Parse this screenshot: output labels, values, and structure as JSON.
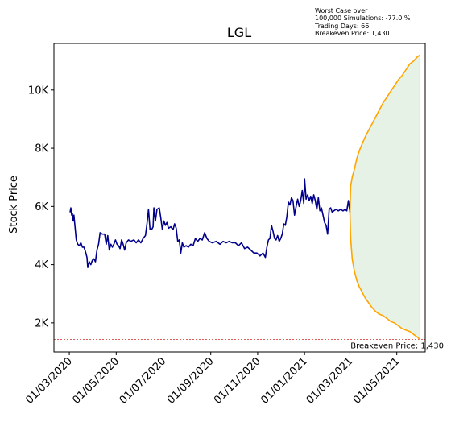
{
  "chart_data": {
    "type": "line",
    "title": "LGL",
    "xlabel": "",
    "ylabel": "Stock Price",
    "x_tick_labels": [
      "01/03/2020",
      "01/05/2020",
      "01/07/2020",
      "01/09/2020",
      "01/11/2020",
      "01/01/2021",
      "01/03/2021",
      "01/05/2021"
    ],
    "y_tick_labels": [
      "2K",
      "4K",
      "6K",
      "8K",
      "10K"
    ],
    "y_ticks": [
      2000,
      4000,
      6000,
      8000,
      10000
    ],
    "ylim": [
      1000,
      11600
    ],
    "xlim": [
      "2020-02-10",
      "2021-06-07"
    ],
    "grid": false,
    "info_lines": [
      "Worst Case over",
      "100,000 Simulations: -77.0 %",
      "Trading Days: 66",
      "Breakeven Price: 1,430"
    ],
    "breakeven": {
      "value": 1430,
      "label": "Breakeven Price: 1,430",
      "color": "#d62728"
    },
    "colors": {
      "history": "#00008b",
      "envelope": "#ffa500",
      "fill": "#e5f2e5"
    },
    "history": [
      [
        "2020-03-02",
        5800
      ],
      [
        "2020-03-03",
        5950
      ],
      [
        "2020-03-04",
        5700
      ],
      [
        "2020-03-05",
        5750
      ],
      [
        "2020-03-06",
        5500
      ],
      [
        "2020-03-07",
        5700
      ],
      [
        "2020-03-09",
        5150
      ],
      [
        "2020-03-10",
        4850
      ],
      [
        "2020-03-12",
        4700
      ],
      [
        "2020-03-14",
        4650
      ],
      [
        "2020-03-16",
        4750
      ],
      [
        "2020-03-18",
        4600
      ],
      [
        "2020-03-20",
        4600
      ],
      [
        "2020-03-22",
        4450
      ],
      [
        "2020-03-24",
        4250
      ],
      [
        "2020-03-25",
        3900
      ],
      [
        "2020-03-27",
        4100
      ],
      [
        "2020-03-29",
        4000
      ],
      [
        "2020-03-31",
        4150
      ],
      [
        "2020-04-02",
        4200
      ],
      [
        "2020-04-04",
        4100
      ],
      [
        "2020-04-06",
        4500
      ],
      [
        "2020-04-08",
        4700
      ],
      [
        "2020-04-10",
        5100
      ],
      [
        "2020-04-13",
        5050
      ],
      [
        "2020-04-16",
        5050
      ],
      [
        "2020-04-18",
        4700
      ],
      [
        "2020-04-20",
        5000
      ],
      [
        "2020-04-22",
        4500
      ],
      [
        "2020-04-24",
        4700
      ],
      [
        "2020-04-26",
        4600
      ],
      [
        "2020-04-28",
        4700
      ],
      [
        "2020-04-30",
        4850
      ],
      [
        "2020-05-02",
        4700
      ],
      [
        "2020-05-04",
        4650
      ],
      [
        "2020-05-06",
        4550
      ],
      [
        "2020-05-08",
        4850
      ],
      [
        "2020-05-10",
        4700
      ],
      [
        "2020-05-12",
        4500
      ],
      [
        "2020-05-14",
        4750
      ],
      [
        "2020-05-17",
        4850
      ],
      [
        "2020-05-20",
        4800
      ],
      [
        "2020-05-24",
        4850
      ],
      [
        "2020-05-27",
        4750
      ],
      [
        "2020-05-30",
        4850
      ],
      [
        "2020-06-02",
        4750
      ],
      [
        "2020-06-05",
        4900
      ],
      [
        "2020-06-08",
        5000
      ],
      [
        "2020-06-10",
        5400
      ],
      [
        "2020-06-12",
        5900
      ],
      [
        "2020-06-14",
        5200
      ],
      [
        "2020-06-16",
        5200
      ],
      [
        "2020-06-18",
        5300
      ],
      [
        "2020-06-19",
        5950
      ],
      [
        "2020-06-21",
        5500
      ],
      [
        "2020-06-23",
        5900
      ],
      [
        "2020-06-26",
        5950
      ],
      [
        "2020-06-28",
        5600
      ],
      [
        "2020-06-30",
        5200
      ],
      [
        "2020-07-02",
        5500
      ],
      [
        "2020-07-04",
        5350
      ],
      [
        "2020-07-06",
        5450
      ],
      [
        "2020-07-08",
        5250
      ],
      [
        "2020-07-11",
        5300
      ],
      [
        "2020-07-14",
        5200
      ],
      [
        "2020-07-16",
        5400
      ],
      [
        "2020-07-18",
        5250
      ],
      [
        "2020-07-20",
        4800
      ],
      [
        "2020-07-22",
        4850
      ],
      [
        "2020-07-24",
        4400
      ],
      [
        "2020-07-26",
        4750
      ],
      [
        "2020-07-28",
        4600
      ],
      [
        "2020-07-31",
        4650
      ],
      [
        "2020-08-03",
        4600
      ],
      [
        "2020-08-06",
        4700
      ],
      [
        "2020-08-09",
        4650
      ],
      [
        "2020-08-12",
        4900
      ],
      [
        "2020-08-15",
        4800
      ],
      [
        "2020-08-18",
        4900
      ],
      [
        "2020-08-21",
        4850
      ],
      [
        "2020-08-24",
        5100
      ],
      [
        "2020-08-27",
        4900
      ],
      [
        "2020-08-30",
        4800
      ],
      [
        "2020-09-03",
        4750
      ],
      [
        "2020-09-08",
        4800
      ],
      [
        "2020-09-13",
        4700
      ],
      [
        "2020-09-17",
        4800
      ],
      [
        "2020-09-21",
        4750
      ],
      [
        "2020-09-25",
        4800
      ],
      [
        "2020-09-29",
        4750
      ],
      [
        "2020-10-03",
        4750
      ],
      [
        "2020-10-07",
        4650
      ],
      [
        "2020-10-11",
        4750
      ],
      [
        "2020-10-15",
        4550
      ],
      [
        "2020-10-19",
        4600
      ],
      [
        "2020-10-23",
        4500
      ],
      [
        "2020-10-27",
        4400
      ],
      [
        "2020-10-31",
        4400
      ],
      [
        "2020-11-04",
        4300
      ],
      [
        "2020-11-08",
        4400
      ],
      [
        "2020-11-11",
        4250
      ],
      [
        "2020-11-13",
        4600
      ],
      [
        "2020-11-15",
        4850
      ],
      [
        "2020-11-17",
        4900
      ],
      [
        "2020-11-19",
        5350
      ],
      [
        "2020-11-21",
        5150
      ],
      [
        "2020-11-23",
        4900
      ],
      [
        "2020-11-25",
        4850
      ],
      [
        "2020-11-27",
        5000
      ],
      [
        "2020-11-29",
        4800
      ],
      [
        "2020-12-01",
        4900
      ],
      [
        "2020-12-03",
        5050
      ],
      [
        "2020-12-05",
        5400
      ],
      [
        "2020-12-07",
        5350
      ],
      [
        "2020-12-09",
        5650
      ],
      [
        "2020-12-11",
        6150
      ],
      [
        "2020-12-13",
        6050
      ],
      [
        "2020-12-15",
        6300
      ],
      [
        "2020-12-17",
        6200
      ],
      [
        "2020-12-19",
        5700
      ],
      [
        "2020-12-21",
        6000
      ],
      [
        "2020-12-23",
        6250
      ],
      [
        "2020-12-25",
        6000
      ],
      [
        "2020-12-27",
        6200
      ],
      [
        "2020-12-29",
        6550
      ],
      [
        "2020-12-31",
        6100
      ],
      [
        "2021-01-01",
        6950
      ],
      [
        "2021-01-03",
        6250
      ],
      [
        "2021-01-05",
        6400
      ],
      [
        "2021-01-07",
        6200
      ],
      [
        "2021-01-09",
        6350
      ],
      [
        "2021-01-11",
        6100
      ],
      [
        "2021-01-13",
        6400
      ],
      [
        "2021-01-15",
        6200
      ],
      [
        "2021-01-17",
        5900
      ],
      [
        "2021-01-19",
        6300
      ],
      [
        "2021-01-21",
        5850
      ],
      [
        "2021-01-23",
        5950
      ],
      [
        "2021-01-25",
        5700
      ],
      [
        "2021-01-27",
        5450
      ],
      [
        "2021-01-29",
        5350
      ],
      [
        "2021-01-31",
        5050
      ],
      [
        "2021-02-02",
        5900
      ],
      [
        "2021-02-04",
        5950
      ],
      [
        "2021-02-06",
        5800
      ],
      [
        "2021-02-08",
        5850
      ],
      [
        "2021-02-11",
        5900
      ],
      [
        "2021-02-14",
        5850
      ],
      [
        "2021-02-17",
        5900
      ],
      [
        "2021-02-20",
        5850
      ],
      [
        "2021-02-23",
        5900
      ],
      [
        "2021-02-25",
        5850
      ],
      [
        "2021-02-27",
        6200
      ],
      [
        "2021-03-01",
        5800
      ]
    ],
    "envelope_upper": [
      [
        "2021-03-01",
        5800
      ],
      [
        "2021-03-02",
        6700
      ],
      [
        "2021-03-04",
        7000
      ],
      [
        "2021-03-07",
        7300
      ],
      [
        "2021-03-10",
        7650
      ],
      [
        "2021-03-13",
        7900
      ],
      [
        "2021-03-17",
        8150
      ],
      [
        "2021-03-21",
        8400
      ],
      [
        "2021-03-25",
        8600
      ],
      [
        "2021-03-29",
        8800
      ],
      [
        "2021-04-03",
        9050
      ],
      [
        "2021-04-08",
        9300
      ],
      [
        "2021-04-13",
        9550
      ],
      [
        "2021-04-18",
        9750
      ],
      [
        "2021-04-23",
        9950
      ],
      [
        "2021-04-28",
        10150
      ],
      [
        "2021-05-03",
        10350
      ],
      [
        "2021-05-08",
        10500
      ],
      [
        "2021-05-13",
        10700
      ],
      [
        "2021-05-18",
        10900
      ],
      [
        "2021-05-23",
        11000
      ],
      [
        "2021-05-28",
        11150
      ],
      [
        "2021-05-31",
        11200
      ]
    ],
    "envelope_lower": [
      [
        "2021-03-01",
        5800
      ],
      [
        "2021-03-02",
        4900
      ],
      [
        "2021-03-04",
        4200
      ],
      [
        "2021-03-07",
        3750
      ],
      [
        "2021-03-10",
        3450
      ],
      [
        "2021-03-13",
        3250
      ],
      [
        "2021-03-17",
        3050
      ],
      [
        "2021-03-21",
        2850
      ],
      [
        "2021-03-25",
        2700
      ],
      [
        "2021-03-29",
        2550
      ],
      [
        "2021-04-03",
        2400
      ],
      [
        "2021-04-08",
        2300
      ],
      [
        "2021-04-13",
        2250
      ],
      [
        "2021-04-18",
        2150
      ],
      [
        "2021-04-23",
        2050
      ],
      [
        "2021-04-28",
        2000
      ],
      [
        "2021-05-03",
        1900
      ],
      [
        "2021-05-08",
        1800
      ],
      [
        "2021-05-13",
        1750
      ],
      [
        "2021-05-18",
        1700
      ],
      [
        "2021-05-23",
        1600
      ],
      [
        "2021-05-28",
        1500
      ],
      [
        "2021-05-31",
        1430
      ]
    ]
  }
}
